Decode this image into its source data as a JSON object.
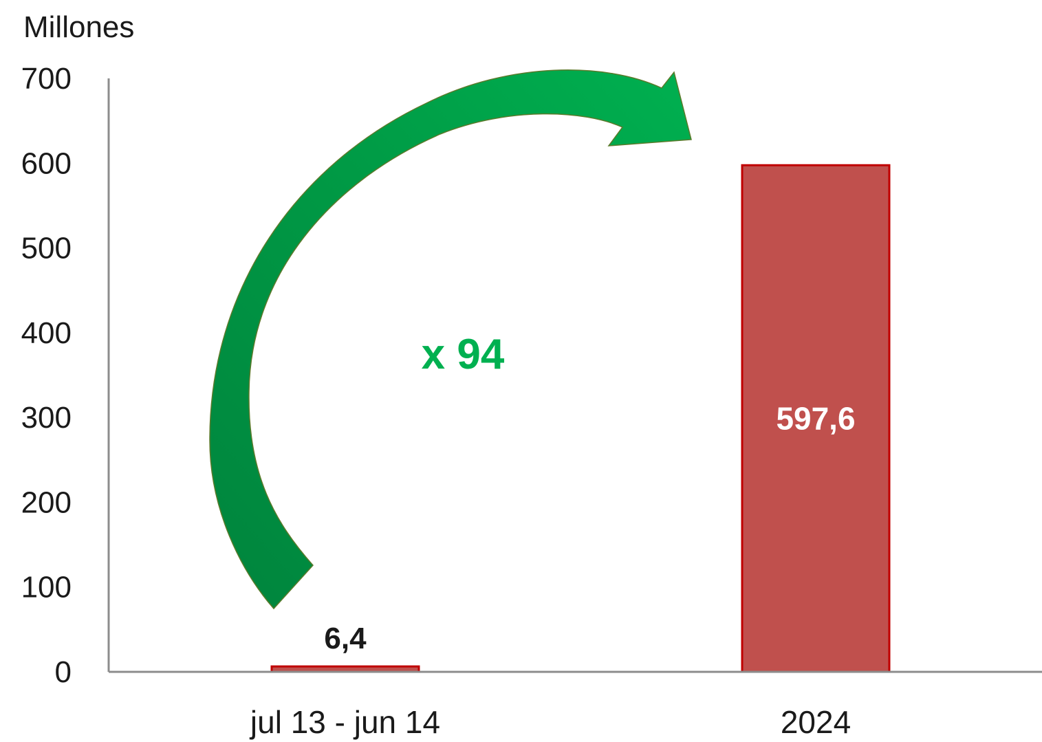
{
  "chart_data": {
    "type": "bar",
    "unit_label": "Millones",
    "categories": [
      "jul 13 - jun 14",
      "2024"
    ],
    "values": [
      6.4,
      597.6
    ],
    "value_labels": [
      "6,4",
      "597,6"
    ],
    "ylim": [
      0,
      700
    ],
    "yticks": [
      0,
      100,
      200,
      300,
      400,
      500,
      600,
      700
    ],
    "grid": false,
    "annotation": "x 94",
    "colors": {
      "bar_fill": "#c0504d",
      "bar_stroke": "#c00000",
      "axis": "#8c8c8c",
      "arrow_light": "#00b050",
      "arrow_dark": "#00843d",
      "annotation": "#00b050"
    }
  }
}
